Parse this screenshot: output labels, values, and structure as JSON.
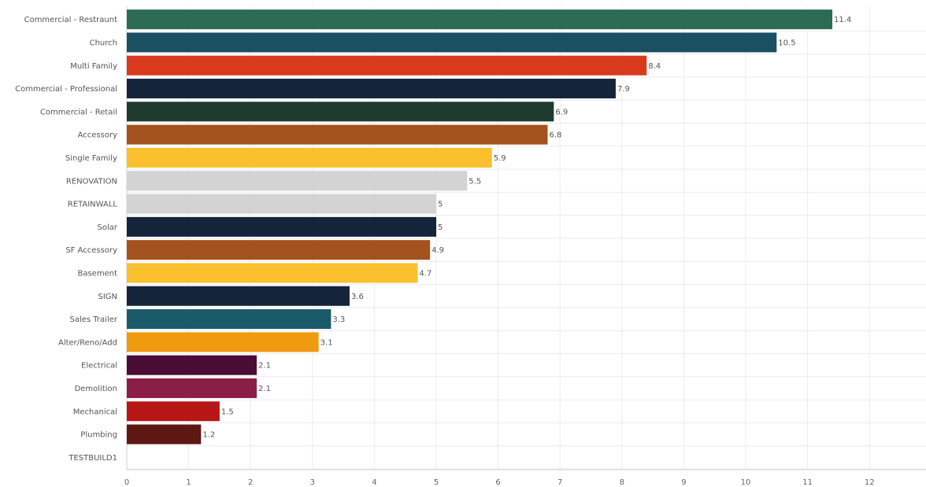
{
  "chart_data": {
    "type": "bar",
    "orientation": "horizontal",
    "title": "",
    "xlabel": "",
    "ylabel": "",
    "xlim": [
      0,
      12
    ],
    "xticks": [
      0,
      1,
      2,
      3,
      4,
      5,
      6,
      7,
      8,
      9,
      10,
      11,
      12
    ],
    "grid": true,
    "legend": "none",
    "categories": [
      "Commercial - Restraunt",
      "Church",
      "Multi Family",
      "Commercial - Professional",
      "Commercial - Retail",
      "Accessory",
      "Single Family",
      "RENOVATION",
      "RETAINWALL",
      "Solar",
      "SF Accessory",
      "Basement",
      "SIGN",
      "Sales Trailer",
      "Alter/Reno/Add",
      "Electrical",
      "Demolition",
      "Mechanical",
      "Plumbing",
      "TESTBUILD1"
    ],
    "values": [
      11.4,
      10.5,
      8.4,
      7.9,
      6.9,
      6.8,
      5.9,
      5.5,
      5,
      5,
      4.9,
      4.7,
      3.6,
      3.3,
      3.1,
      2.1,
      2.1,
      1.5,
      1.2,
      null
    ],
    "value_labels": [
      "11.4",
      "10.5",
      "8.4",
      "7.9",
      "6.9",
      "6.8",
      "5.9",
      "5.5",
      "5",
      "5",
      "4.9",
      "4.7",
      "3.6",
      "3.3",
      "3.1",
      "2.1",
      "2.1",
      "1.5",
      "1.2",
      ""
    ],
    "colors": [
      "#2e6b55",
      "#1b4f62",
      "#d93a1e",
      "#14243a",
      "#1f3b2e",
      "#a4521e",
      "#fbc02d",
      "#d3d3d3",
      "#d3d3d3",
      "#14243a",
      "#a4521e",
      "#fbc02d",
      "#14243a",
      "#1b5a6b",
      "#f09a10",
      "#4a0c36",
      "#8c1e46",
      "#b81616",
      "#5e1712",
      "#cccccc"
    ]
  }
}
